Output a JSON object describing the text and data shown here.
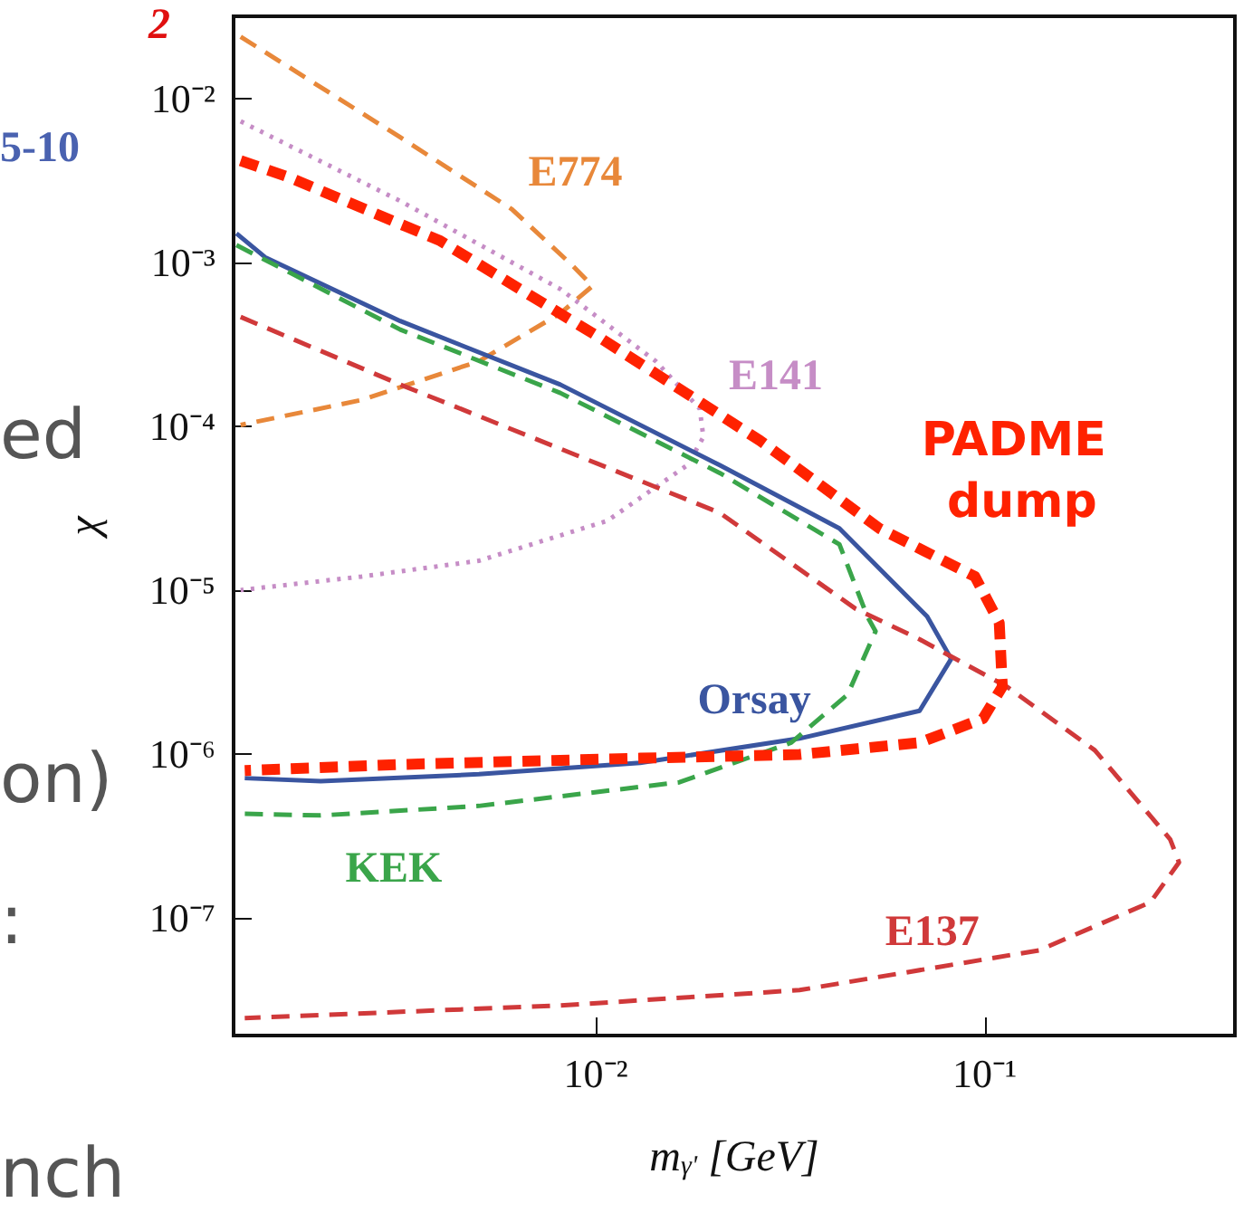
{
  "chart_data": {
    "type": "line",
    "xlabel": "m$_{γ'}$ [GeV]",
    "ylabel": "χ",
    "log": "xy",
    "grid": false,
    "legend": false,
    "marker": "none",
    "xlim": [
      0.00117,
      0.44
    ],
    "ylim": [
      1.9e-08,
      0.032
    ],
    "xticks": [
      {
        "value": 0.01,
        "label": "10⁻²"
      },
      {
        "value": 0.1,
        "label": "10⁻¹"
      }
    ],
    "yticks": [
      {
        "value": 1e-07,
        "label": "10⁻⁷"
      },
      {
        "value": 1e-06,
        "label": "10⁻⁶"
      },
      {
        "value": 1e-05,
        "label": "10⁻⁵"
      },
      {
        "value": 0.0001,
        "label": "10⁻⁴"
      },
      {
        "value": 0.001,
        "label": "10⁻³"
      },
      {
        "value": 0.01,
        "label": "10⁻²"
      }
    ],
    "annotations": [
      "2",
      "5-10",
      "ed",
      "on)",
      ":",
      "nch"
    ],
    "series": [
      {
        "name": "E774",
        "color": "#e8883a",
        "line_style": "dashed",
        "x": [
          0.00122,
          0.00314,
          0.00608,
          0.00867,
          0.0098,
          0.0081,
          0.005,
          0.0025,
          0.00122
        ],
        "values": [
          0.024,
          0.00583,
          0.00212,
          0.00097,
          0.00072,
          0.00049,
          0.00025,
          0.000145,
          0.000102
        ]
      },
      {
        "name": "E141",
        "color": "#c68dc6",
        "line_style": "dotted",
        "x": [
          0.00122,
          0.00314,
          0.0081,
          0.01426,
          0.0185,
          0.0189,
          0.0172,
          0.0107,
          0.005,
          0.0025,
          0.00122
        ],
        "values": [
          0.0073,
          0.00238,
          0.00069,
          0.00025,
          0.000128,
          8.6e-05,
          5.8e-05,
          2.65e-05,
          1.51e-05,
          1.21e-05,
          1e-05
        ]
      },
      {
        "name": "Orsay",
        "color": "#3a55a0",
        "line_style": "solid",
        "x": [
          0.00119,
          0.00141,
          0.00314,
          0.0081,
          0.0208,
          0.0423,
          0.0711,
          0.082,
          0.068,
          0.0334,
          0.013,
          0.005,
          0.00196,
          0.00125
        ],
        "values": [
          0.00151,
          0.00108,
          0.00044,
          0.00018,
          5.8e-05,
          2.38e-05,
          6.9e-06,
          3.8e-06,
          1.83e-06,
          1.24e-06,
          8.8e-07,
          7.5e-07,
          6.8e-07,
          7.1e-07
        ]
      },
      {
        "name": "KEK",
        "color": "#3aa54a",
        "line_style": "dashed",
        "x": [
          0.00119,
          0.00314,
          0.0081,
          0.0208,
          0.0423,
          0.0499,
          0.0524,
          0.0444,
          0.0318,
          0.0164,
          0.005,
          0.00196,
          0.00125
        ],
        "values": [
          0.00128,
          0.00039,
          0.00016,
          5.2e-05,
          1.9e-05,
          6.9e-06,
          5.6e-06,
          2.3e-06,
          1.17e-06,
          6.7e-07,
          4.8e-07,
          4.2e-07,
          4.3e-07
        ]
      },
      {
        "name": "E137",
        "color": "#d0393a",
        "line_style": "dashed",
        "x": [
          0.00122,
          0.00314,
          0.0081,
          0.0208,
          0.0465,
          0.068,
          0.114,
          0.192,
          0.3,
          0.316,
          0.267,
          0.138,
          0.0334,
          0.0081,
          0.00125
        ],
        "values": [
          0.000466,
          0.00018,
          7.3e-05,
          2.97e-05,
          7.7e-06,
          5e-06,
          2.57e-06,
          1.05e-06,
          3e-07,
          2.17e-07,
          1.24e-07,
          6.3e-08,
          3.6e-08,
          2.9e-08,
          2.43e-08
        ]
      },
      {
        "name": "PADME dump",
        "color": "#ff2200",
        "line_style": "dashed",
        "x": [
          0.00122,
          0.00162,
          0.00398,
          0.0102,
          0.0264,
          0.0536,
          0.0944,
          0.109,
          0.111,
          0.099,
          0.068,
          0.0334,
          0.013,
          0.00314,
          0.00125
        ],
        "values": [
          0.0042,
          0.00333,
          0.00136,
          0.00035,
          8.2e-05,
          2.38e-05,
          1.21e-05,
          6.3e-06,
          2.57e-06,
          1.64e-06,
          1.17e-06,
          9.9e-07,
          9.4e-07,
          8.6e-07,
          7.9e-07
        ]
      }
    ]
  }
}
